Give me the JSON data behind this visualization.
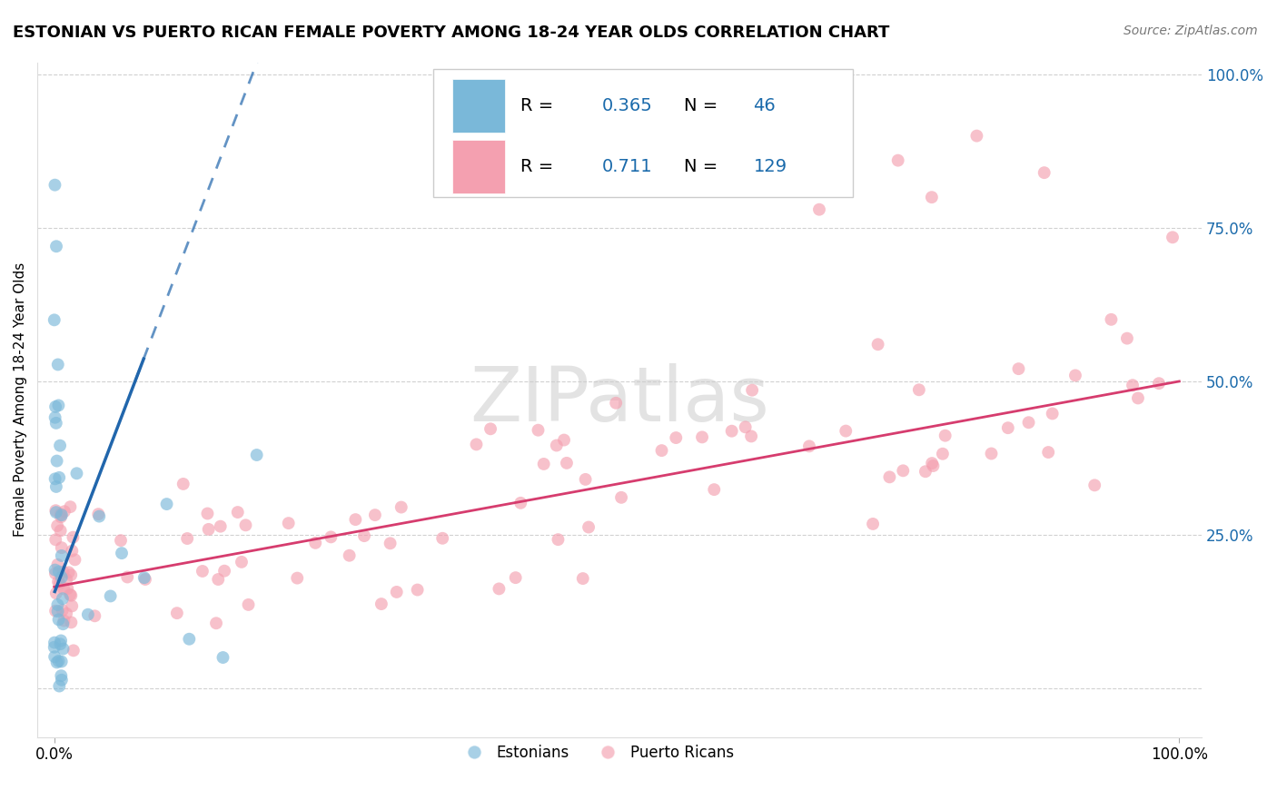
{
  "title": "ESTONIAN VS PUERTO RICAN FEMALE POVERTY AMONG 18-24 YEAR OLDS CORRELATION CHART",
  "source": "Source: ZipAtlas.com",
  "ylabel": "Female Poverty Among 18-24 Year Olds",
  "background_color": "#ffffff",
  "watermark_text": "ZIPatlas",
  "estonian_color": "#7ab8d9",
  "puerto_rican_color": "#f4a0b0",
  "estonian_line_color": "#2166ac",
  "puerto_rican_line_color": "#d63c6e",
  "R_estonian": 0.365,
  "N_estonian": 46,
  "R_puerto_rican": 0.711,
  "N_puerto_rican": 129,
  "legend_R_color": "#1a6aab",
  "legend_N_color": "#1a6aab",
  "ytick_color": "#1a6aab",
  "grid_color": "#cccccc",
  "title_fontsize": 13,
  "source_fontsize": 10,
  "tick_fontsize": 12,
  "ylabel_fontsize": 11,
  "legend_fontsize": 14,
  "watermark_fontsize": 60,
  "scatter_size": 100,
  "scatter_alpha": 0.65,
  "line_width": 2.0,
  "est_line_slope": 4.8,
  "est_line_intercept": 0.155,
  "pr_line_slope": 0.335,
  "pr_line_intercept": 0.165
}
